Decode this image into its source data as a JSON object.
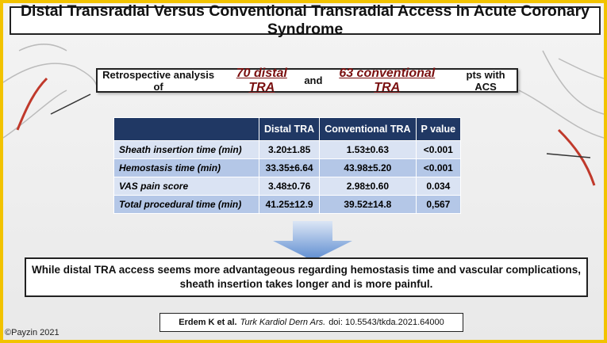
{
  "title": "Distal Transradial Versus Conventional Transradial Access in Acute Coronary Syndrome",
  "subtitle": {
    "lead": "Retrospective analysis of",
    "group1": "70 distal TRA",
    "joiner": "and",
    "group2": "63 conventional TRA",
    "tail": "pts with ACS"
  },
  "table": {
    "header": [
      "Distal TRA",
      "Conventional TRA",
      "P value"
    ],
    "rows": [
      [
        "Sheath insertion time (min)",
        "3.20±1.85",
        "1.53±0.63",
        "<0.001"
      ],
      [
        "Hemostasis time (min)",
        "33.35±6.64",
        "43.98±5.20",
        "<0.001"
      ],
      [
        "VAS pain score",
        "3.48±0.76",
        "2.98±0.60",
        "0.034"
      ],
      [
        "Total procedural time (min)",
        "41.25±12.9",
        "39.52±14.8",
        "0,567"
      ]
    ]
  },
  "conclusion": [
    "While distal TRA access seems more advantageous regarding  hemostasis time and vascular complications,",
    "sheath insertion takes longer and is more painful."
  ],
  "citation": {
    "authors": "Erdem K et al.",
    "journal": "Turk Kardiol Dern Ars.",
    "doi": "doi: 10.5543/tkda.2021.64000"
  },
  "copyright": "©Payzin 2021"
}
